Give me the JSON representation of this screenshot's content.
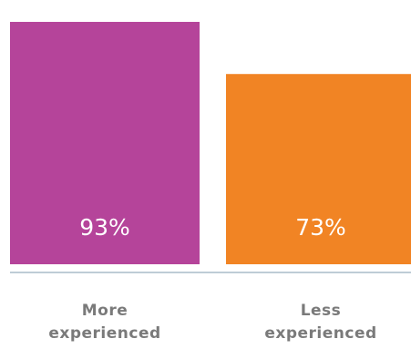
{
  "chart_data": {
    "type": "bar",
    "categories": [
      [
        "More",
        "experienced"
      ],
      [
        "Less",
        "experienced"
      ]
    ],
    "values": [
      93,
      73
    ],
    "value_labels": [
      "93%",
      "73%"
    ],
    "colors": [
      "#b5449a",
      "#f18424"
    ],
    "ylim": [
      0,
      100
    ],
    "grid": false,
    "axis_color": "#a9bcc8"
  }
}
